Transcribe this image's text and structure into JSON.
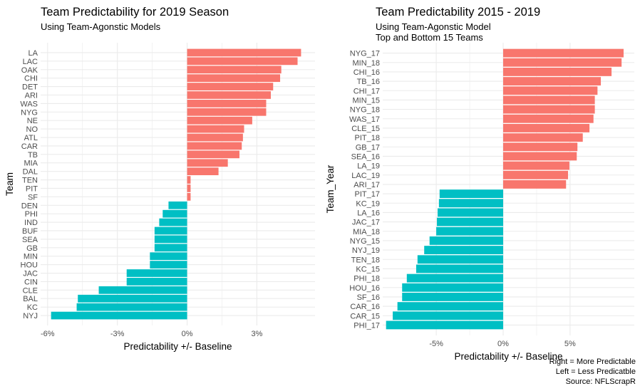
{
  "colors": {
    "positive": "#F8766D",
    "negative": "#00BFC4",
    "grid": "#EBEBEB",
    "tick": "#4D4D4D"
  },
  "caption": [
    "Right = More Predictable",
    "Left = Less Predicatble",
    "Source: NFLScrapR"
  ],
  "chart_data": [
    {
      "type": "bar",
      "orientation": "horizontal",
      "title": "Team Predictability for 2019 Season",
      "subtitle": [
        "Using Team-Agonstic Models"
      ],
      "xlabel": "Predictability +/- Baseline",
      "ylabel": "Team",
      "xlim": [
        -6.3,
        5.5
      ],
      "xticks": [
        -6,
        -3,
        0,
        3
      ],
      "xtick_labels": [
        "-6%",
        "-3%",
        "0%",
        "3%"
      ],
      "grid": true,
      "categories": [
        "LA",
        "LAC",
        "OAK",
        "CHI",
        "DET",
        "ARI",
        "WAS",
        "NYG",
        "NE",
        "NO",
        "ATL",
        "CAR",
        "TB",
        "MIA",
        "DAL",
        "TEN",
        "PIT",
        "SF",
        "DEN",
        "PHI",
        "IND",
        "BUF",
        "SEA",
        "GB",
        "MIN",
        "HOU",
        "JAC",
        "CIN",
        "CLE",
        "BAL",
        "KC",
        "NYJ"
      ],
      "values": [
        4.9,
        4.75,
        4.05,
        4.0,
        3.7,
        3.6,
        3.4,
        3.4,
        2.8,
        2.45,
        2.4,
        2.35,
        2.25,
        1.75,
        1.35,
        0.15,
        0.15,
        0.15,
        -0.8,
        -1.05,
        -1.2,
        -1.4,
        -1.4,
        -1.4,
        -1.6,
        -1.6,
        -2.6,
        -2.6,
        -3.8,
        -4.7,
        -4.75,
        -5.85
      ]
    },
    {
      "type": "bar",
      "orientation": "horizontal",
      "title": "Team Predictability 2015 - 2019",
      "subtitle": [
        "Using Team-Agonstic Model",
        "Top and Bottom 15 Teams"
      ],
      "xlabel": "Predictability +/- Baseline",
      "ylabel": "Team_Year",
      "xlim": [
        -9.0,
        9.8
      ],
      "xticks": [
        -5,
        0,
        5
      ],
      "xtick_labels": [
        "-5%",
        "0%",
        "5%"
      ],
      "grid": true,
      "categories": [
        "NYG_17",
        "MIN_18",
        "CHI_16",
        "TB_16",
        "CHI_17",
        "MIN_15",
        "NYG_18",
        "WAS_17",
        "CLE_15",
        "PIT_18",
        "GB_17",
        "SEA_16",
        "LA_19",
        "LAC_19",
        "ARI_17",
        "PIT_17",
        "KC_19",
        "LA_16",
        "JAC_17",
        "MIA_18",
        "NYG_15",
        "NYJ_19",
        "TEN_18",
        "KC_15",
        "PHI_18",
        "HOU_16",
        "SF_16",
        "CAR_16",
        "CAR_15",
        "PHI_17"
      ],
      "values": [
        9.0,
        8.85,
        8.1,
        7.3,
        7.05,
        6.85,
        6.85,
        6.75,
        6.45,
        5.95,
        5.55,
        5.5,
        4.95,
        4.85,
        4.7,
        -4.75,
        -4.8,
        -4.9,
        -4.95,
        -5.0,
        -5.5,
        -5.9,
        -6.4,
        -6.5,
        -7.2,
        -7.55,
        -7.55,
        -7.9,
        -8.25,
        -8.75
      ]
    }
  ]
}
